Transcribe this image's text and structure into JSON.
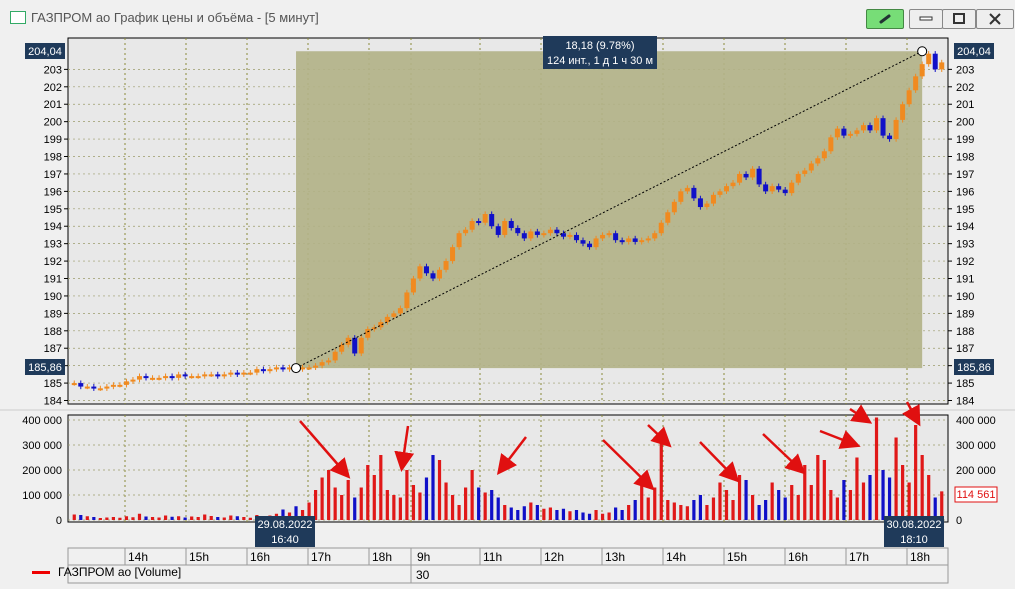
{
  "window": {
    "title": "ГАЗПРОМ ао График цены и объёма - [5 минут]",
    "buttons": {
      "link": "link-icon",
      "minimize": "minimize-icon",
      "maximize": "maximize-icon",
      "close": "close-icon"
    }
  },
  "chart_data": [
    {
      "type": "candlestick",
      "title": "",
      "ylim": [
        183.8,
        204.8
      ],
      "yticks": [
        184,
        185,
        186,
        187,
        188,
        189,
        190,
        191,
        192,
        193,
        194,
        195,
        196,
        197,
        198,
        199,
        200,
        201,
        202,
        203
      ],
      "ytick_labels": [
        "184",
        "185",
        "186",
        "187",
        "188",
        "189",
        "190",
        "191",
        "192",
        "193",
        "194",
        "195",
        "196",
        "197",
        "198",
        "199",
        "200",
        "201",
        "202",
        "203"
      ],
      "price_labels": {
        "high": "204,04",
        "low": "185,86"
      },
      "measurement": {
        "line1": "18,18 (9.78%)",
        "line2": "124 инт., 1 д 1 ч 30 м",
        "from_price": 185.86,
        "to_price": 204.04
      },
      "closes": [
        185.0,
        184.8,
        184.8,
        184.7,
        184.7,
        184.8,
        184.9,
        184.9,
        185.1,
        185.2,
        185.4,
        185.3,
        185.3,
        185.3,
        185.4,
        185.3,
        185.5,
        185.4,
        185.4,
        185.4,
        185.5,
        185.5,
        185.4,
        185.5,
        185.6,
        185.5,
        185.6,
        185.6,
        185.8,
        185.7,
        185.8,
        185.9,
        185.8,
        185.9,
        185.8,
        185.9,
        185.9,
        186.0,
        186.2,
        186.3,
        186.8,
        187.2,
        187.6,
        186.7,
        187.6,
        188.1,
        188.2,
        188.5,
        188.8,
        189.0,
        189.3,
        190.2,
        191.0,
        191.7,
        191.3,
        191.0,
        191.5,
        192.0,
        192.8,
        193.6,
        193.8,
        194.3,
        194.2,
        194.7,
        194.0,
        193.5,
        194.3,
        193.9,
        193.6,
        193.3,
        193.7,
        193.5,
        193.6,
        193.8,
        193.6,
        193.4,
        193.5,
        193.2,
        193.0,
        192.8,
        193.3,
        193.5,
        193.6,
        193.2,
        193.1,
        193.3,
        193.1,
        193.2,
        193.3,
        193.6,
        194.2,
        194.8,
        195.4,
        196.0,
        196.2,
        195.6,
        195.1,
        195.3,
        195.8,
        196.0,
        196.3,
        196.5,
        197.0,
        196.8,
        197.3,
        196.4,
        196.0,
        196.3,
        196.1,
        195.9,
        196.5,
        197.0,
        197.2,
        197.6,
        197.9,
        198.3,
        199.1,
        199.6,
        199.2,
        199.3,
        199.5,
        199.8,
        199.5,
        200.2,
        199.2,
        199.0,
        200.1,
        201.0,
        201.8,
        202.6,
        203.3,
        203.9,
        203.0,
        203.4
      ],
      "volumes": [
        22000,
        20000,
        15000,
        12000,
        8000,
        10000,
        12000,
        9000,
        15000,
        11000,
        25000,
        14000,
        12000,
        10000,
        18000,
        13000,
        15000,
        10000,
        14000,
        12000,
        22000,
        16000,
        12000,
        10000,
        18000,
        15000,
        12000,
        9000,
        20000,
        14000,
        18000,
        25000,
        42000,
        30000,
        55000,
        40000,
        70000,
        120000,
        170000,
        200000,
        130000,
        100000,
        160000,
        90000,
        130000,
        220000,
        180000,
        260000,
        120000,
        100000,
        90000,
        200000,
        140000,
        110000,
        170000,
        260000,
        240000,
        150000,
        100000,
        60000,
        130000,
        200000,
        130000,
        110000,
        120000,
        90000,
        60000,
        50000,
        40000,
        55000,
        70000,
        60000,
        45000,
        50000,
        40000,
        45000,
        35000,
        40000,
        30000,
        25000,
        40000,
        25000,
        30000,
        50000,
        40000,
        60000,
        80000,
        150000,
        90000,
        130000,
        350000,
        80000,
        70000,
        60000,
        55000,
        80000,
        100000,
        60000,
        90000,
        150000,
        120000,
        80000,
        180000,
        160000,
        100000,
        60000,
        80000,
        150000,
        120000,
        90000,
        140000,
        100000,
        220000,
        140000,
        260000,
        240000,
        120000,
        90000,
        160000,
        120000,
        250000,
        150000,
        180000,
        410000,
        200000,
        170000,
        330000,
        220000,
        150000,
        380000,
        260000,
        180000,
        90000,
        114561
      ],
      "volume_yticks": [
        0,
        100000,
        200000,
        300000,
        400000
      ],
      "volume_ytick_labels": [
        "0",
        "100 000",
        "200 000",
        "300 000",
        "400 000"
      ],
      "volume_ylim": [
        0,
        420000
      ],
      "last_volume_label": "114 561",
      "time_labels": [
        "29.08.2022\n16:40",
        "30.08.2022\n18:10"
      ],
      "xticks": [
        "14h",
        "15h",
        "16h",
        "17h",
        "18h",
        "9h",
        "11h",
        "12h",
        "13h",
        "14h",
        "15h",
        "16h",
        "17h",
        "18h"
      ],
      "date_row": [
        "30"
      ],
      "legend": [
        {
          "name": "ГАЗПРОМ ао [Volume]",
          "color": "#e01010"
        }
      ]
    }
  ]
}
